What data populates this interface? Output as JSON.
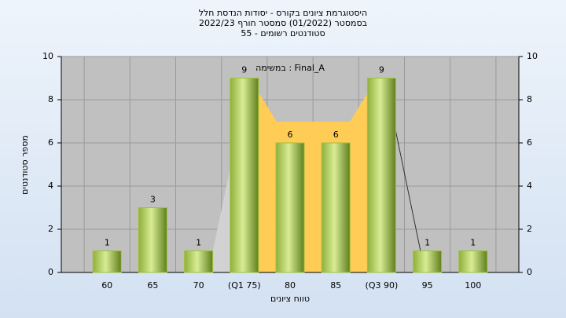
{
  "chart_data": {
    "type": "bar",
    "title": "היסטוגרמת ציונים בקורס - יסודות הנדסת חלל",
    "subtitle": "בסמסטר  (01/2022)  סמסטר חורף  2022/23",
    "subtitle2": "סטודנטים רשומים - 55",
    "annotation": "במשימה : Final_A",
    "x_label": "טווח ציונים",
    "y_label": "מספר סטודנטים",
    "categories": [
      "60",
      "65",
      "70",
      "(Q1 75)",
      "80",
      "85",
      "(Q3 90)",
      "95",
      "100"
    ],
    "values": [
      1,
      3,
      1,
      9,
      6,
      6,
      9,
      1,
      1
    ],
    "color": "#9dc23f",
    "ylim": [
      0,
      10
    ],
    "yticks": [
      0,
      2,
      4,
      6,
      8,
      10
    ],
    "y2lim": [
      0,
      10
    ],
    "y2ticks": [
      0,
      2,
      4,
      6,
      8,
      10
    ],
    "grid": true
  }
}
